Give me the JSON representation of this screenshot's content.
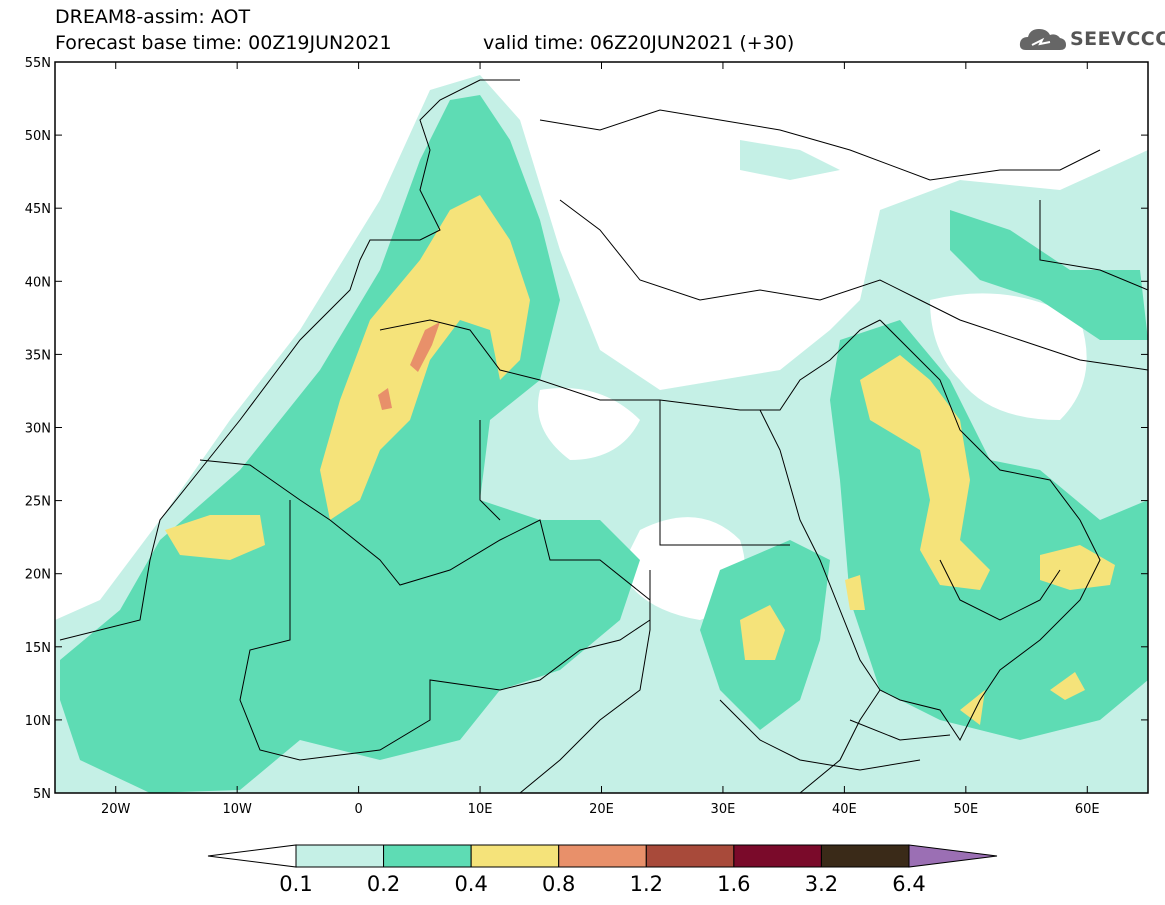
{
  "header": {
    "title_line1": "DREAM8-assim: AOT",
    "title_line2": "Forecast base time: 00Z19JUN2021",
    "valid_time": "valid time: 06Z20JUN2021 (+30)"
  },
  "logo": {
    "text": "SEEVCCC",
    "icon": "cloud-logo-icon"
  },
  "map": {
    "lon_range": [
      -25,
      65
    ],
    "lat_range": [
      5,
      55
    ],
    "lat_labels": [
      "55N",
      "50N",
      "45N",
      "40N",
      "35N",
      "30N",
      "25N",
      "20N",
      "15N",
      "10N",
      "5N"
    ],
    "lon_labels": [
      "20W",
      "10W",
      "0",
      "10E",
      "20E",
      "30E",
      "40E",
      "50E",
      "60E"
    ]
  },
  "colorbar": {
    "labels": [
      "0.1",
      "0.2",
      "0.4",
      "0.8",
      "1.2",
      "1.6",
      "3.2",
      "6.4"
    ],
    "colors": [
      "#ffffff",
      "#c5f0e6",
      "#5edcb4",
      "#f5e37a",
      "#e8906a",
      "#a84a3a",
      "#7a0a2a",
      "#3a2a18",
      "#9b6fb4"
    ]
  }
}
